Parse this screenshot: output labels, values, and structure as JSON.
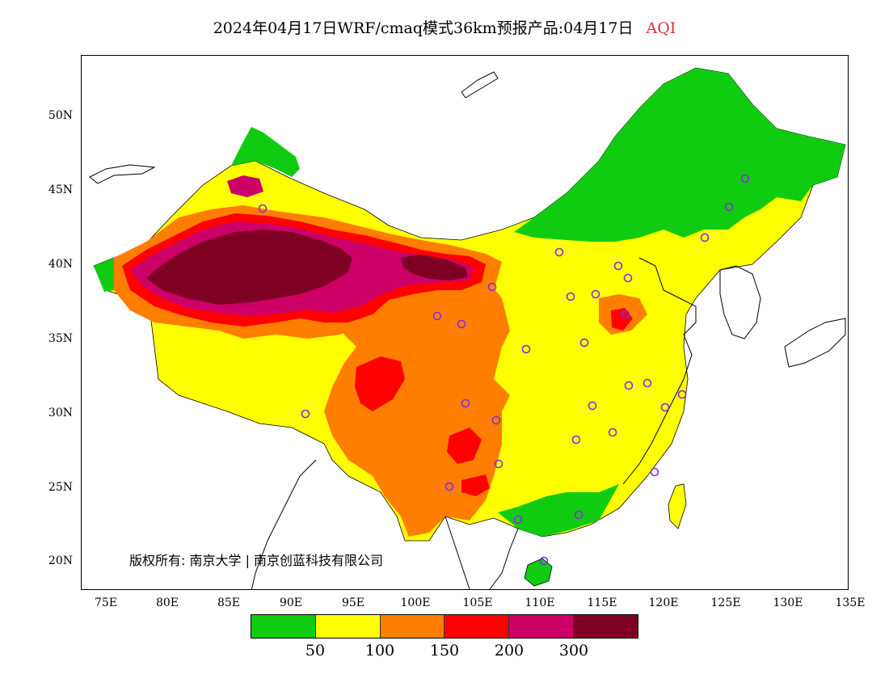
{
  "title": {
    "main": "2024年04月17日WRF/cmaq模式36km预报产品:04月17日",
    "variable": "AQI"
  },
  "axes": {
    "lat_labels": [
      "50N",
      "45N",
      "40N",
      "35N",
      "30N",
      "25N",
      "20N"
    ],
    "lon_labels": [
      "75E",
      "80E",
      "85E",
      "90E",
      "95E",
      "100E",
      "105E",
      "110E",
      "115E",
      "120E",
      "125E",
      "130E",
      "135E"
    ]
  },
  "copyright": "版权所有: 南京大学 | 南京创蓝科技有限公司",
  "legend": {
    "colors": [
      "#10cc10",
      "#ffff00",
      "#ff7e00",
      "#ff0000",
      "#cc0066",
      "#7e0023"
    ],
    "ticks": [
      "50",
      "100",
      "150",
      "200",
      "300"
    ]
  },
  "colors": {
    "good": "#10cc10",
    "moderate": "#ffff00",
    "usg": "#ff7e00",
    "unhealthy": "#ff0000",
    "very_unhealthy": "#cc0066",
    "hazardous": "#7e0023"
  }
}
